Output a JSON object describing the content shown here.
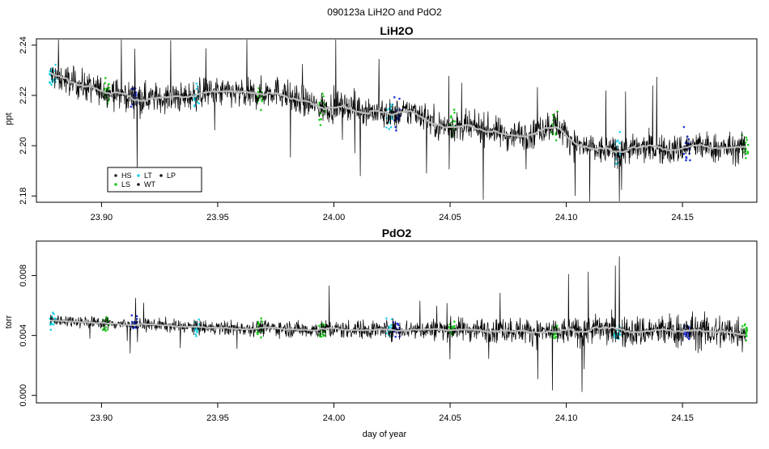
{
  "figure": {
    "title": "090123a   LiH2O and PdO2",
    "xlabel": "day of year"
  },
  "legend": {
    "entries": [
      {
        "label": "HS",
        "color": "#2a2a2a"
      },
      {
        "label": "LT",
        "color": "#22d3e6"
      },
      {
        "label": "LP",
        "color": "#1a1a1a"
      },
      {
        "label": "LS",
        "color": "#22cc22"
      },
      {
        "label": "WT",
        "color": "#1a1a1a"
      }
    ]
  },
  "chart_data": [
    {
      "type": "line",
      "title": "LiH2O",
      "ylabel": "ppt",
      "xlim": [
        23.872,
        24.182
      ],
      "ylim": [
        2.1775,
        2.2425
      ],
      "x_ticks": [
        23.9,
        23.95,
        24.0,
        24.05,
        24.1,
        24.15
      ],
      "x_tick_labels": [
        "23.90",
        "23.95",
        "24.00",
        "24.05",
        "24.10",
        "24.15"
      ],
      "y_ticks": [
        2.18,
        2.2,
        2.22,
        2.24
      ],
      "y_tick_labels": [
        "2.18",
        "2.20",
        "2.22",
        "2.24"
      ],
      "legend_position": "bottom-left",
      "series": [
        {
          "color": "#000000",
          "trend_x": [
            23.878,
            23.885,
            23.895,
            23.905,
            23.915,
            23.925,
            23.935,
            23.945,
            23.955,
            23.965,
            23.975,
            23.985,
            23.995,
            24.005,
            24.015,
            24.025,
            24.035,
            24.045,
            24.055,
            24.065,
            24.075,
            24.085,
            24.095,
            24.105,
            24.115,
            24.125,
            24.135,
            24.145,
            24.155,
            24.165,
            24.177
          ],
          "trend_y": [
            2.228,
            2.226,
            2.223,
            2.221,
            2.219,
            2.219,
            2.219,
            2.221,
            2.221,
            2.22,
            2.222,
            2.218,
            2.215,
            2.216,
            2.214,
            2.212,
            2.214,
            2.208,
            2.207,
            2.207,
            2.204,
            2.205,
            2.209,
            2.2,
            2.198,
            2.198,
            2.199,
            2.198,
            2.2,
            2.199,
            2.199
          ],
          "noise_amplitude": 0.006
        }
      ],
      "calibration_bands": [
        {
          "x": 23.879,
          "color": "#22d3e6"
        },
        {
          "x": 23.902,
          "color": "#22cc22"
        },
        {
          "x": 23.914,
          "color": "#2233dd"
        },
        {
          "x": 23.941,
          "color": "#22d3e6"
        },
        {
          "x": 23.968,
          "color": "#22cc22"
        },
        {
          "x": 23.995,
          "color": "#22cc22"
        },
        {
          "x": 24.024,
          "color": "#22d3e6"
        },
        {
          "x": 24.027,
          "color": "#2233dd"
        },
        {
          "x": 24.051,
          "color": "#22cc22"
        },
        {
          "x": 24.095,
          "color": "#22cc22"
        },
        {
          "x": 24.122,
          "color": "#22d3e6"
        },
        {
          "x": 24.152,
          "color": "#2233dd"
        },
        {
          "x": 24.177,
          "color": "#22cc22"
        }
      ]
    },
    {
      "type": "line",
      "title": "PdO2",
      "ylabel": "torr",
      "xlim": [
        23.872,
        24.182
      ],
      "ylim": [
        -0.0005,
        0.0103
      ],
      "x_ticks": [
        23.9,
        23.95,
        24.0,
        24.05,
        24.1,
        24.15
      ],
      "x_tick_labels": [
        "23.90",
        "23.95",
        "24.00",
        "24.05",
        "24.10",
        "24.15"
      ],
      "y_ticks": [
        0.0,
        0.004,
        0.008
      ],
      "y_tick_labels": [
        "0.000",
        "0.004",
        "0.008"
      ],
      "series": [
        {
          "color": "#000000",
          "trend_x": [
            23.878,
            23.885,
            23.895,
            23.905,
            23.915,
            23.925,
            23.935,
            23.945,
            23.955,
            23.965,
            23.975,
            23.985,
            23.995,
            24.005,
            24.015,
            24.025,
            24.035,
            24.045,
            24.055,
            24.065,
            24.075,
            24.085,
            24.095,
            24.105,
            24.115,
            24.125,
            24.135,
            24.145,
            24.155,
            24.165,
            24.177
          ],
          "trend_y": [
            0.005,
            0.005,
            0.0049,
            0.0048,
            0.0047,
            0.0047,
            0.0046,
            0.0045,
            0.0045,
            0.0045,
            0.0045,
            0.0044,
            0.0044,
            0.0044,
            0.0044,
            0.0044,
            0.0044,
            0.0044,
            0.0044,
            0.0044,
            0.0044,
            0.0043,
            0.0042,
            0.0043,
            0.0044,
            0.0042,
            0.0043,
            0.0043,
            0.0043,
            0.0042,
            0.0043
          ],
          "noise_amplitude_start": 0.0004,
          "noise_amplitude_end": 0.0013
        }
      ],
      "calibration_bands": [
        {
          "x": 23.879,
          "color": "#22d3e6"
        },
        {
          "x": 23.902,
          "color": "#22cc22"
        },
        {
          "x": 23.914,
          "color": "#2233dd"
        },
        {
          "x": 23.941,
          "color": "#22d3e6"
        },
        {
          "x": 23.968,
          "color": "#22cc22"
        },
        {
          "x": 23.995,
          "color": "#22cc22"
        },
        {
          "x": 24.024,
          "color": "#22d3e6"
        },
        {
          "x": 24.027,
          "color": "#2233dd"
        },
        {
          "x": 24.051,
          "color": "#22cc22"
        },
        {
          "x": 24.095,
          "color": "#22cc22"
        },
        {
          "x": 24.122,
          "color": "#22d3e6"
        },
        {
          "x": 24.152,
          "color": "#2233dd"
        },
        {
          "x": 24.177,
          "color": "#22cc22"
        }
      ]
    }
  ]
}
